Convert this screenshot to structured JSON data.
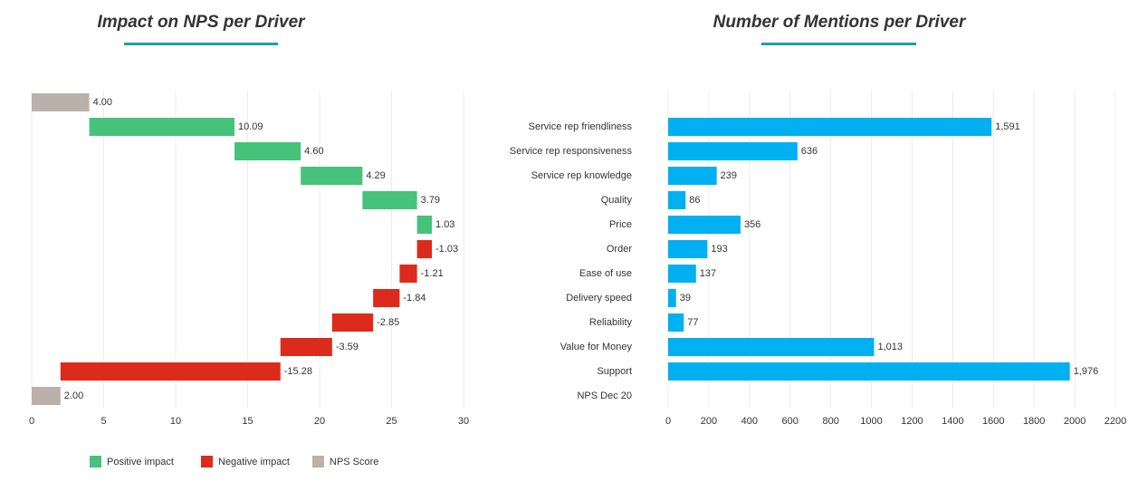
{
  "chart_data": [
    {
      "type": "waterfall",
      "title": "Impact on NPS per Driver",
      "values": [
        4.0,
        10.09,
        4.6,
        4.29,
        3.79,
        1.03,
        -1.03,
        -1.21,
        -1.84,
        -2.85,
        -3.59,
        -15.28,
        2.0
      ],
      "value_labels": [
        "4.00",
        "10.09",
        "4.60",
        "4.29",
        "3.79",
        "1.03",
        "-1.03",
        "-1.21",
        "-1.84",
        "-2.85",
        "-3.59",
        "-15.28",
        "2.00"
      ],
      "totals": [
        0,
        12
      ],
      "legend": [
        {
          "name": "Positive impact",
          "color": "#47c27a"
        },
        {
          "name": "Negative impact",
          "color": "#dc2a1c"
        },
        {
          "name": "NPS Score",
          "color": "#bcb1aa"
        }
      ],
      "xlim": [
        0,
        30
      ],
      "xticks": [
        0,
        5,
        10,
        15,
        20,
        25,
        30
      ],
      "grid": true
    },
    {
      "type": "hbar",
      "title": "Number of Mentions per Driver",
      "categories": [
        null,
        "Service rep friendliness",
        "Service rep responsiveness",
        "Service rep knowledge",
        "Quality",
        "Price",
        "Order",
        "Ease of use",
        "Delivery speed",
        "Reliability",
        "Value for Money",
        "Support",
        "NPS Dec 20"
      ],
      "values": [
        null,
        1591,
        636,
        239,
        86,
        356,
        193,
        137,
        39,
        77,
        1013,
        1976,
        null
      ],
      "value_labels": [
        null,
        "1,591",
        "636",
        "239",
        "86",
        "356",
        "193",
        "137",
        "39",
        "77",
        "1,013",
        "1,976",
        null
      ],
      "color": "#00b0f0",
      "xlim": [
        0,
        2200
      ],
      "xticks": [
        0,
        200,
        400,
        600,
        800,
        1000,
        1200,
        1400,
        1600,
        1800,
        2000,
        2200
      ],
      "grid": true
    }
  ]
}
